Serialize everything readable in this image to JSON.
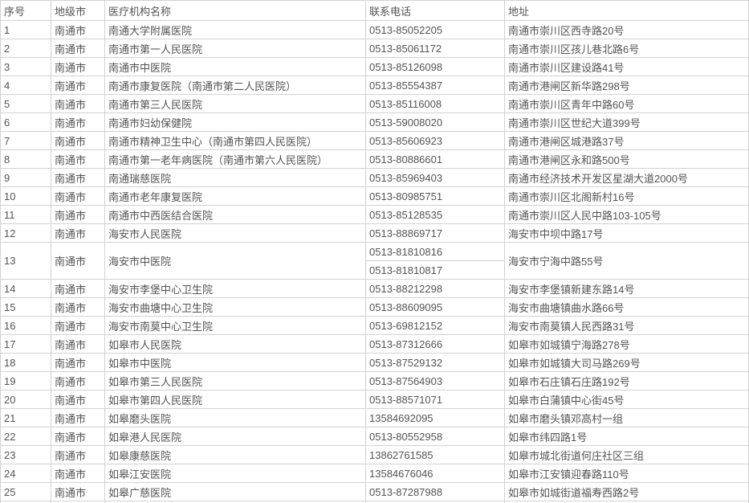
{
  "table": {
    "headers": [
      "序号",
      "地级市",
      "医疗机构名称",
      "联系电话",
      "地址"
    ],
    "rows": [
      {
        "no": "1",
        "city": "南通市",
        "name": "南通大学附属医院",
        "phones": [
          "0513-85052205"
        ],
        "address": "南通市崇川区西寺路20号"
      },
      {
        "no": "2",
        "city": "南通市",
        "name": "南通市第一人民医院",
        "phones": [
          "0513-85061172"
        ],
        "address": "南通市崇川区孩儿巷北路6号"
      },
      {
        "no": "3",
        "city": "南通市",
        "name": "南通市中医院",
        "phones": [
          "0513-85126098"
        ],
        "address": "南通市崇川区建设路41号"
      },
      {
        "no": "4",
        "city": "南通市",
        "name": "南通市康复医院（南通市第二人民医院）",
        "phones": [
          "0513-85554387"
        ],
        "address": "南通市港闸区新华路298号"
      },
      {
        "no": "5",
        "city": "南通市",
        "name": "南通市第三人民医院",
        "phones": [
          "0513-85116008"
        ],
        "address": "南通市崇川区青年中路60号"
      },
      {
        "no": "6",
        "city": "南通市",
        "name": "南通市妇幼保健院",
        "phones": [
          "0513-59008020"
        ],
        "address": "南通市崇川区世纪大道399号"
      },
      {
        "no": "7",
        "city": "南通市",
        "name": "南通市精神卫生中心（南通市第四人民医院）",
        "phones": [
          "0513-85606923"
        ],
        "address": "南通市港闸区城港路37号"
      },
      {
        "no": "8",
        "city": "南通市",
        "name": "南通市第一老年病医院（南通市第六人民医院）",
        "phones": [
          "0513-80886601"
        ],
        "address": "南通市港闸区永和路500号"
      },
      {
        "no": "9",
        "city": "南通市",
        "name": "南通瑞慈医院",
        "phones": [
          "0513-85969403"
        ],
        "address": "南通市经济技术开发区星湖大道2000号"
      },
      {
        "no": "10",
        "city": "南通市",
        "name": "南通市老年康复医院",
        "phones": [
          "0513-80985751"
        ],
        "address": "南通市崇川区北阁新村16号"
      },
      {
        "no": "11",
        "city": "南通市",
        "name": "南通市中西医结合医院",
        "phones": [
          "0513-85128535"
        ],
        "address": "南通市崇川区人民中路103-105号"
      },
      {
        "no": "12",
        "city": "南通市",
        "name": "海安市人民医院",
        "phones": [
          "0513-88869717"
        ],
        "address": "海安市中坝中路17号"
      },
      {
        "no": "13",
        "city": "南通市",
        "name": "海安市中医院",
        "phones": [
          "0513-81810816",
          "0513-81810817"
        ],
        "address": "海安市宁海中路55号"
      },
      {
        "no": "14",
        "city": "南通市",
        "name": "海安市李堡中心卫生院",
        "phones": [
          "0513-88212298"
        ],
        "address": "海安市李堡镇新建东路14号"
      },
      {
        "no": "15",
        "city": "南通市",
        "name": "海安市曲塘中心卫生院",
        "phones": [
          "0513-88609095"
        ],
        "address": "海安市曲塘镇曲水路66号"
      },
      {
        "no": "16",
        "city": "南通市",
        "name": "海安市南莫中心卫生院",
        "phones": [
          "0513-69812152"
        ],
        "address": "海安市南莫镇人民西路31号"
      },
      {
        "no": "17",
        "city": "南通市",
        "name": "如皋市人民医院",
        "phones": [
          "0513-87312666"
        ],
        "address": "如皋市如城镇宁海路278号"
      },
      {
        "no": "18",
        "city": "南通市",
        "name": "如皋市中医院",
        "phones": [
          "0513-87529132"
        ],
        "address": "如皋市如城镇大司马路269号"
      },
      {
        "no": "19",
        "city": "南通市",
        "name": "如皋市第三人民医院",
        "phones": [
          "0513-87564903"
        ],
        "address": "如皋市石庄镇石庄路192号"
      },
      {
        "no": "20",
        "city": "南通市",
        "name": "如皋市第四人民医院",
        "phones": [
          "0513-88571071"
        ],
        "address": "如皋市白蒲镇中心街45号"
      },
      {
        "no": "21",
        "city": "南通市",
        "name": "如皋磨头医院",
        "phones": [
          "13584692095"
        ],
        "address": "如皋市磨头镇邓高村一组"
      },
      {
        "no": "22",
        "city": "南通市",
        "name": "如皋港人民医院",
        "phones": [
          "0513-80552958"
        ],
        "address": "如皋市纬四路1号"
      },
      {
        "no": "23",
        "city": "南通市",
        "name": "如皋康慈医院",
        "phones": [
          "13862761585"
        ],
        "address": "如皋市城北街道何庄社区三组"
      },
      {
        "no": "24",
        "city": "南通市",
        "name": "如皋江安医院",
        "phones": [
          "13584676046"
        ],
        "address": "如皋市江安镇迎春路110号"
      },
      {
        "no": "25",
        "city": "南通市",
        "name": "如皋广慈医院",
        "phones": [
          "0513-87287988"
        ],
        "address": "如皋市如城街道福寿西路2号"
      }
    ]
  },
  "colors": {
    "border": "#d2d2d2",
    "text": "#545454",
    "background": "#ffffff"
  }
}
